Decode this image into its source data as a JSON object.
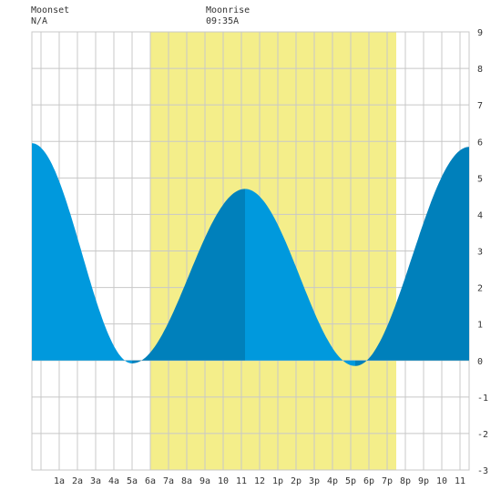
{
  "header": {
    "moonset_label": "Moonset",
    "moonset_value": "N/A",
    "moonrise_label": "Moonrise",
    "moonrise_value": "09:35A"
  },
  "colors": {
    "daylight": "#f4ee8a",
    "water_light": "#0099dd",
    "water_dark": "#0080bb",
    "grid": "#c8c8c8",
    "axis_text": "#333333"
  },
  "chart_data": {
    "type": "area",
    "title": "",
    "xlabel": "",
    "ylabel": "",
    "x_unit": "hour of day",
    "xlim": [
      -0.5,
      23.5
    ],
    "ylim": [
      -3,
      9
    ],
    "y_ticks": [
      -3,
      -2,
      -1,
      0,
      1,
      2,
      3,
      4,
      5,
      6,
      7,
      8,
      9
    ],
    "x_tick_hours": [
      1,
      2,
      3,
      4,
      5,
      6,
      7,
      8,
      9,
      10,
      11,
      12,
      13,
      14,
      15,
      16,
      17,
      18,
      19,
      20,
      21,
      22,
      23
    ],
    "x_tick_labels": [
      "1a",
      "2a",
      "3a",
      "4a",
      "5a",
      "6a",
      "7a",
      "8a",
      "9a",
      "10",
      "11",
      "12",
      "1p",
      "2p",
      "3p",
      "4p",
      "5p",
      "6p",
      "7p",
      "8p",
      "9p",
      "10",
      "11"
    ],
    "daylight_hours": [
      6.0,
      19.5
    ],
    "grid": true,
    "tide_extremes": [
      {
        "hour": -0.5,
        "height": 5.95
      },
      {
        "hour": 5.0,
        "height": -0.08
      },
      {
        "hour": 11.2,
        "height": 4.7
      },
      {
        "hour": 17.25,
        "height": -0.15
      },
      {
        "hour": 23.5,
        "height": 5.85
      }
    ],
    "shade_bands": [
      {
        "from": -0.5,
        "to": 5.0,
        "tone": "light"
      },
      {
        "from": 5.0,
        "to": 11.2,
        "tone": "dark"
      },
      {
        "from": 11.2,
        "to": 17.25,
        "tone": "light"
      },
      {
        "from": 17.25,
        "to": 23.5,
        "tone": "dark"
      }
    ]
  }
}
